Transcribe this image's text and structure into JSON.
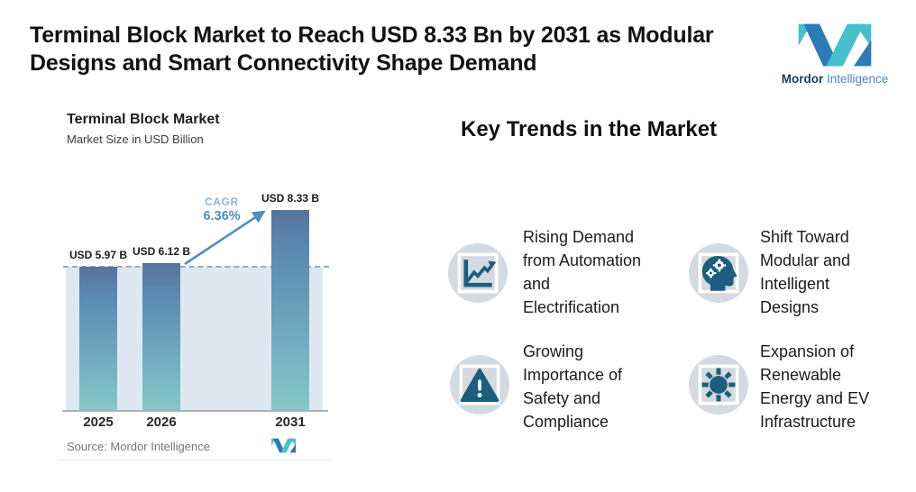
{
  "header": {
    "title_line1": "Terminal Block Market to Reach USD 8.33 Bn by 2031 as Modular",
    "title_line2": "Designs and Smart Connectivity Shape Demand"
  },
  "brand": {
    "name_bold": "Mordor",
    "name_light": "Intelligence",
    "teal": "#46c1cb",
    "blue": "#2c7ab6"
  },
  "chart": {
    "title": "Terminal Block Market",
    "subtitle": "Market Size in USD Billion",
    "source": "Source: Mordor Intelligence"
  },
  "chart_data": {
    "type": "bar",
    "title": "Terminal Block Market",
    "subtitle": "Market Size in USD Billion",
    "unit": "USD Billion",
    "categories": [
      "2025",
      "2026",
      "2031"
    ],
    "values": [
      5.97,
      6.12,
      8.33
    ],
    "bar_labels": [
      "USD 5.97 B",
      "USD 6.12 B",
      "USD 8.33 B"
    ],
    "cagr_label": "CAGR",
    "cagr_value": "6.36%",
    "reference_line": {
      "style": "dashed",
      "value": 5.97
    },
    "ylim": [
      0,
      9
    ],
    "grid": false,
    "bar_gradient": [
      "#5a87b0",
      "#85c8ca"
    ],
    "area_fill_color": "#dde8f1",
    "dashed_line_color": "#86b0d7",
    "arrow_color": "#4f8dc4"
  },
  "trends": {
    "heading": "Key Trends in the Market",
    "icon_circle_color": "#d4dae1",
    "icon_glyph_color": "#1d5e7e",
    "items": [
      {
        "icon": "line-chart-icon",
        "text": "Rising Demand\nfrom Automation\nand\nElectrification"
      },
      {
        "icon": "head-gears-icon",
        "text": "Shift Toward\nModular and\nIntelligent\nDesigns"
      },
      {
        "icon": "warning-triangle-icon",
        "text": "Growing\nImportance of\nSafety and\nCompliance"
      },
      {
        "icon": "sun-icon",
        "text": "Expansion of\nRenewable\nEnergy and EV\nInfrastructure"
      }
    ]
  }
}
